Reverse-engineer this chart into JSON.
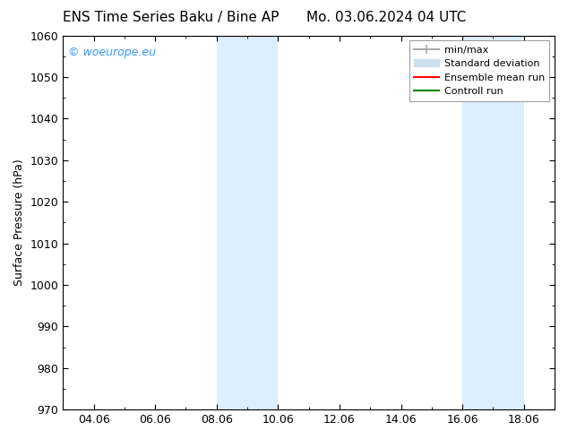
{
  "title_left": "ENS Time Series Baku / Bine AP",
  "title_right": "Mo. 03.06.2024 04 UTC",
  "ylabel": "Surface Pressure (hPa)",
  "ylim": [
    970,
    1060
  ],
  "x_tick_positions": [
    0,
    2,
    4,
    6,
    8,
    10,
    12,
    14
  ],
  "x_tick_labels": [
    "04.06",
    "06.06",
    "08.06",
    "10.06",
    "12.06",
    "14.06",
    "16.06",
    "18.06"
  ],
  "xlim": [
    -1,
    15
  ],
  "yticks": [
    970,
    980,
    990,
    1000,
    1010,
    1020,
    1030,
    1040,
    1050,
    1060
  ],
  "shaded_bands": [
    {
      "x_start": 4.0,
      "x_end": 6.0,
      "color": "#ddeeff"
    },
    {
      "x_start": 12.0,
      "x_end": 14.0,
      "color": "#ddeeff"
    }
  ],
  "watermark_text": "© woeurope.eu",
  "watermark_color": "#3399ff",
  "bg_color": "#ffffff",
  "plot_bg_color": "#ffffff",
  "legend_items": [
    {
      "label": "min/max",
      "color": "#aaaaaa",
      "lw": 1.5
    },
    {
      "label": "Standard deviation",
      "color": "#cce0f0",
      "lw": 7
    },
    {
      "label": "Ensemble mean run",
      "color": "red",
      "lw": 1.5
    },
    {
      "label": "Controll run",
      "color": "green",
      "lw": 1.5
    }
  ],
  "font_size_title": 11,
  "font_size_legend": 8,
  "font_size_axis_label": 9,
  "font_size_tick": 9,
  "font_size_watermark": 9
}
